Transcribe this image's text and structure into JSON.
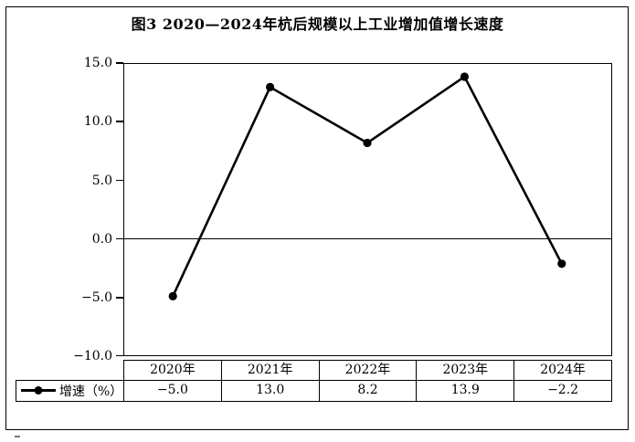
{
  "chart_data": {
    "type": "line",
    "title": "图3 2020—2024年杭后规模以上工业增加值增长速度",
    "categories": [
      "2020年",
      "2021年",
      "2022年",
      "2023年",
      "2024年"
    ],
    "series": [
      {
        "name": "增速（%）",
        "values": [
          -5.0,
          13.0,
          8.2,
          13.9,
          -2.2
        ]
      }
    ],
    "value_labels": [
      "−5.0",
      "13.0",
      "8.2",
      "13.9",
      "−2.2"
    ],
    "xlabel": "",
    "ylabel": "",
    "ylim": [
      -10.0,
      15.0
    ],
    "yticks": [
      "15.0",
      "10.0",
      "5.0",
      "0.0",
      "−5.0",
      "−10.0"
    ],
    "ytick_values": [
      15.0,
      10.0,
      5.0,
      0.0,
      -5.0,
      -10.0
    ],
    "grid": "zero-line-only",
    "legend_position": "bottom-left-table-cell",
    "colors": {
      "line": "#000000",
      "marker": "#000000",
      "border": "#000000",
      "background": "#ffffff"
    }
  }
}
